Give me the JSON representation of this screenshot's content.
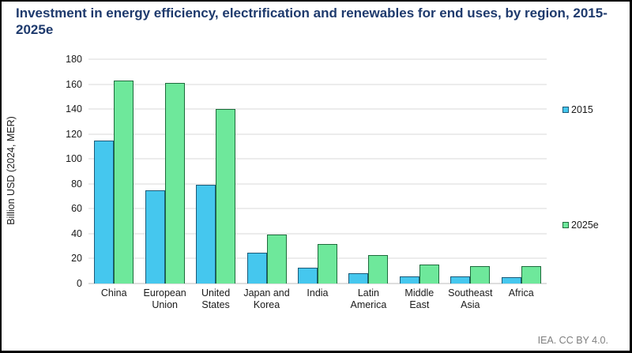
{
  "title": "Investment in energy efficiency, electrification and renewables for end uses, by region, 2015-2025e",
  "footer": {
    "credit": "IEA. CC BY 4.0."
  },
  "colors": {
    "title_text": "#1e3a6d",
    "gridline": "#d9d9d9",
    "credit_text": "#7f7f7f",
    "series_2015_fill": "#45c7ee",
    "series_2015_border": "#1c5a78",
    "series_2025e_fill": "#6ee89b",
    "series_2025e_border": "#1e6b3c"
  },
  "chart_data": {
    "type": "bar",
    "title": "Investment in energy efficiency, electrification and renewables for end uses, by region, 2015-2025e",
    "xlabel": "",
    "ylabel": "Billion USD (2024, MER)",
    "ylim": [
      0,
      180
    ],
    "ytick_step": 20,
    "grid": "horizontal",
    "legend_position": "right",
    "categories": [
      "China",
      "European Union",
      "United States",
      "Japan and Korea",
      "India",
      "Latin America",
      "Middle East",
      "Southeast Asia",
      "Africa"
    ],
    "series": [
      {
        "name": "2015",
        "color": "#45c7ee",
        "border": "#1c5a78",
        "values": [
          115,
          75,
          79,
          25,
          13,
          8,
          6,
          6,
          5
        ]
      },
      {
        "name": "2025e",
        "color": "#6ee89b",
        "border": "#1e6b3c",
        "values": [
          163,
          161,
          140,
          39,
          32,
          23,
          15,
          14,
          14
        ]
      }
    ]
  }
}
